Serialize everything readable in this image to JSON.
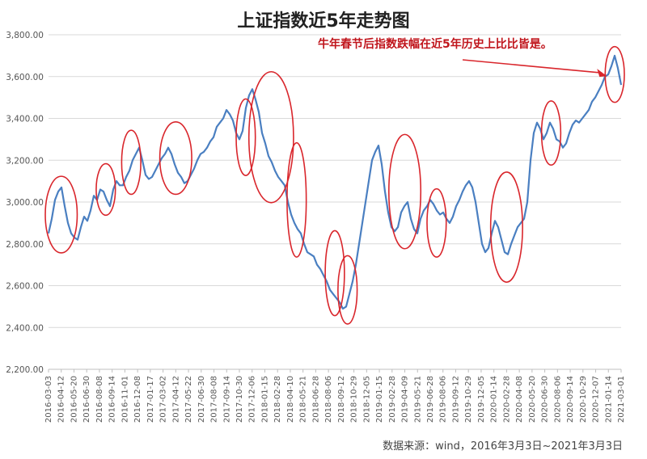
{
  "chart_data": {
    "type": "line",
    "title": "上证指数近5年走势图",
    "annotation": "牛年春节后指数跌幅在近5年历史上比比皆是。",
    "source": "数据来源：wind，2016年3月3日~2021年3月3日",
    "ylim": [
      2200,
      3800
    ],
    "yticks": [
      "2,200.00",
      "2,400.00",
      "2,600.00",
      "2,800.00",
      "3,000.00",
      "3,200.00",
      "3,400.00",
      "3,600.00",
      "3,800.00"
    ],
    "xticks": [
      "2016-03-03",
      "2016-04-12",
      "2016-05-20",
      "2016-06-30",
      "2016-08-08",
      "2016-09-14",
      "2016-11-01",
      "2016-12-08",
      "2017-01-17",
      "2017-03-02",
      "2017-04-12",
      "2017-05-22",
      "2017-06-30",
      "2017-08-08",
      "2017-09-14",
      "2017-10-30",
      "2017-12-06",
      "2018-01-15",
      "2018-02-28",
      "2018-04-10",
      "2018-05-21",
      "2018-06-28",
      "2018-08-06",
      "2018-09-12",
      "2018-10-29",
      "2018-12-05",
      "2019-01-15",
      "2019-02-28",
      "2019-04-09",
      "2019-05-21",
      "2019-06-28",
      "2019-08-06",
      "2019-09-12",
      "2019-10-29",
      "2019-12-05",
      "2020-01-14",
      "2020-02-28",
      "2020-04-08",
      "2020-05-20",
      "2020-06-30",
      "2020-08-06",
      "2020-09-14",
      "2020-10-29",
      "2020-12-07",
      "2021-01-14",
      "2021-03-01"
    ],
    "grid": true,
    "legend": "none",
    "line_color": "#4a7fc1",
    "circle_color": "#d9262c",
    "series": [
      {
        "values": [
          2850,
          2920,
          3010,
          3050,
          3070,
          2980,
          2900,
          2850,
          2830,
          2820,
          2880,
          2930,
          2910,
          2960,
          3030,
          3010,
          3060,
          3050,
          3010,
          2980,
          3060,
          3100,
          3080,
          3080,
          3120,
          3150,
          3200,
          3230,
          3260,
          3200,
          3130,
          3110,
          3120,
          3150,
          3180,
          3210,
          3230,
          3260,
          3230,
          3180,
          3140,
          3120,
          3090,
          3100,
          3130,
          3160,
          3200,
          3230,
          3240,
          3260,
          3290,
          3310,
          3360,
          3380,
          3400,
          3440,
          3420,
          3390,
          3330,
          3300,
          3340,
          3450,
          3510,
          3540,
          3490,
          3430,
          3330,
          3280,
          3220,
          3190,
          3150,
          3120,
          3100,
          3080,
          3000,
          2940,
          2900,
          2870,
          2850,
          2800,
          2760,
          2750,
          2740,
          2700,
          2680,
          2650,
          2620,
          2580,
          2560,
          2540,
          2520,
          2490,
          2500,
          2560,
          2620,
          2700,
          2800,
          2900,
          3000,
          3100,
          3200,
          3240,
          3270,
          3180,
          3050,
          2950,
          2880,
          2860,
          2880,
          2950,
          2980,
          3000,
          2920,
          2870,
          2850,
          2920,
          2960,
          2980,
          3010,
          2990,
          2960,
          2940,
          2950,
          2920,
          2900,
          2930,
          2980,
          3010,
          3050,
          3080,
          3100,
          3070,
          3000,
          2900,
          2800,
          2760,
          2780,
          2850,
          2910,
          2880,
          2820,
          2760,
          2750,
          2800,
          2840,
          2880,
          2900,
          2920,
          3000,
          3200,
          3330,
          3380,
          3350,
          3300,
          3330,
          3380,
          3350,
          3300,
          3290,
          3260,
          3280,
          3330,
          3370,
          3390,
          3380,
          3400,
          3420,
          3440,
          3480,
          3500,
          3530,
          3560,
          3600,
          3610,
          3650,
          3700,
          3640,
          3560
        ]
      }
    ],
    "circles": [
      {
        "start_label": "2016-03-03",
        "end_label": "2016-05-20",
        "low": 2780,
        "high": 3100
      },
      {
        "start_label": "2016-08-08",
        "end_label": "2016-09-14",
        "low": 2960,
        "high": 3160
      },
      {
        "start_label": "2016-11-01",
        "end_label": "2016-12-08",
        "low": 3060,
        "high": 3320
      },
      {
        "start_label": "2017-03-02",
        "end_label": "2017-05-22",
        "low": 3060,
        "high": 3360
      },
      {
        "start_label": "2017-10-30",
        "end_label": "2017-12-06",
        "low": 3150,
        "high": 3470
      },
      {
        "start_label": "2017-12-06",
        "end_label": "2018-04-10",
        "low": 3020,
        "high": 3600
      },
      {
        "start_label": "2018-04-10",
        "end_label": "2018-05-21",
        "low": 2760,
        "high": 3260
      },
      {
        "start_label": "2018-08-06",
        "end_label": "2018-09-12",
        "low": 2480,
        "high": 2840
      },
      {
        "start_label": "2018-09-12",
        "end_label": "2018-10-29",
        "low": 2440,
        "high": 2720
      },
      {
        "start_label": "2019-02-28",
        "end_label": "2019-05-21",
        "low": 2800,
        "high": 3300
      },
      {
        "start_label": "2019-06-28",
        "end_label": "2019-08-06",
        "low": 2760,
        "high": 3040
      },
      {
        "start_label": "2020-01-14",
        "end_label": "2020-04-08",
        "low": 2640,
        "high": 3120
      },
      {
        "start_label": "2020-06-30",
        "end_label": "2020-08-06",
        "low": 3200,
        "high": 3460
      },
      {
        "start_label": "2021-01-14",
        "end_label": "2021-03-01",
        "low": 3500,
        "high": 3720
      }
    ]
  }
}
